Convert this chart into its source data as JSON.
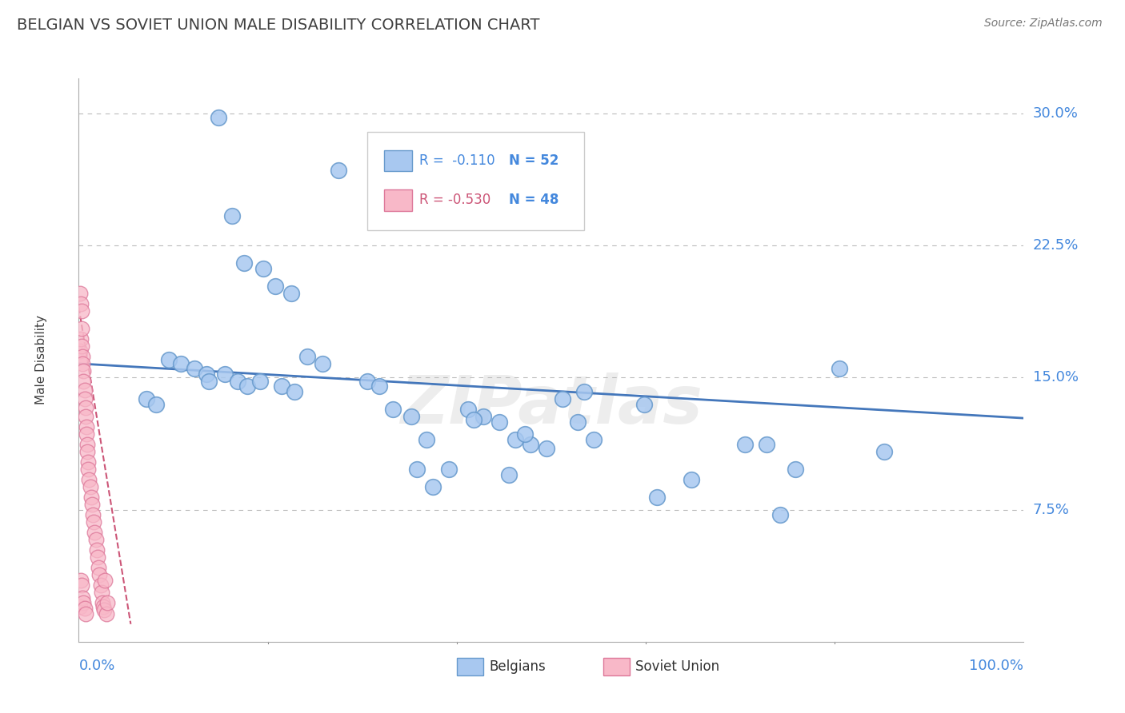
{
  "title": "BELGIAN VS SOVIET UNION MALE DISABILITY CORRELATION CHART",
  "source": "Source: ZipAtlas.com",
  "ylabel": "Male Disability",
  "yticks": [
    0.075,
    0.15,
    0.225,
    0.3
  ],
  "ytick_labels": [
    "7.5%",
    "15.0%",
    "22.5%",
    "30.0%"
  ],
  "xmin": 0.0,
  "xmax": 1.0,
  "ymin": 0.0,
  "ymax": 0.32,
  "legend_r_blue": "R =  -0.110",
  "legend_n_blue": "N = 52",
  "legend_r_pink": "R = -0.530",
  "legend_n_pink": "N = 48",
  "legend_label_blue": "Belgians",
  "legend_label_pink": "Soviet Union",
  "blue_color": "#A8C8F0",
  "pink_color": "#F8B8C8",
  "blue_edge_color": "#6699CC",
  "pink_edge_color": "#DD7799",
  "blue_line_color": "#4477BB",
  "pink_line_color": "#CC5577",
  "blue_x": [
    0.148,
    0.275,
    0.162,
    0.095,
    0.108,
    0.122,
    0.135,
    0.138,
    0.155,
    0.168,
    0.072,
    0.082,
    0.175,
    0.195,
    0.208,
    0.225,
    0.242,
    0.258,
    0.178,
    0.192,
    0.215,
    0.228,
    0.305,
    0.318,
    0.332,
    0.352,
    0.368,
    0.412,
    0.428,
    0.445,
    0.462,
    0.478,
    0.495,
    0.512,
    0.528,
    0.545,
    0.418,
    0.535,
    0.598,
    0.612,
    0.648,
    0.705,
    0.728,
    0.742,
    0.758,
    0.805,
    0.852,
    0.358,
    0.375,
    0.392,
    0.455,
    0.472
  ],
  "blue_y": [
    0.298,
    0.268,
    0.242,
    0.16,
    0.158,
    0.155,
    0.152,
    0.148,
    0.152,
    0.148,
    0.138,
    0.135,
    0.215,
    0.212,
    0.202,
    0.198,
    0.162,
    0.158,
    0.145,
    0.148,
    0.145,
    0.142,
    0.148,
    0.145,
    0.132,
    0.128,
    0.115,
    0.132,
    0.128,
    0.125,
    0.115,
    0.112,
    0.11,
    0.138,
    0.125,
    0.115,
    0.126,
    0.142,
    0.135,
    0.082,
    0.092,
    0.112,
    0.112,
    0.072,
    0.098,
    0.155,
    0.108,
    0.098,
    0.088,
    0.098,
    0.095,
    0.118
  ],
  "pink_x": [
    0.001,
    0.001,
    0.002,
    0.002,
    0.003,
    0.003,
    0.003,
    0.004,
    0.004,
    0.005,
    0.005,
    0.006,
    0.006,
    0.007,
    0.007,
    0.008,
    0.008,
    0.009,
    0.009,
    0.01,
    0.01,
    0.011,
    0.012,
    0.013,
    0.014,
    0.015,
    0.016,
    0.017,
    0.018,
    0.019,
    0.02,
    0.021,
    0.022,
    0.023,
    0.024,
    0.025,
    0.026,
    0.027,
    0.028,
    0.029,
    0.03,
    0.001,
    0.002,
    0.003,
    0.004,
    0.005,
    0.006,
    0.007
  ],
  "pink_y": [
    0.198,
    0.165,
    0.192,
    0.172,
    0.188,
    0.178,
    0.168,
    0.162,
    0.158,
    0.154,
    0.148,
    0.143,
    0.138,
    0.133,
    0.128,
    0.122,
    0.118,
    0.112,
    0.108,
    0.102,
    0.098,
    0.092,
    0.088,
    0.082,
    0.078,
    0.072,
    0.068,
    0.062,
    0.058,
    0.052,
    0.048,
    0.042,
    0.038,
    0.032,
    0.028,
    0.022,
    0.02,
    0.018,
    0.035,
    0.016,
    0.022,
    0.02,
    0.035,
    0.032,
    0.025,
    0.022,
    0.019,
    0.016
  ],
  "watermark": "ZIPatlas",
  "background_color": "#FFFFFF",
  "grid_color": "#BBBBBB",
  "tick_label_color": "#4488DD",
  "title_color": "#404040",
  "title_fontsize": 14,
  "legend_r_color_blue": "#4488DD",
  "legend_r_color_pink": "#CC5577",
  "legend_n_color": "#4488DD"
}
